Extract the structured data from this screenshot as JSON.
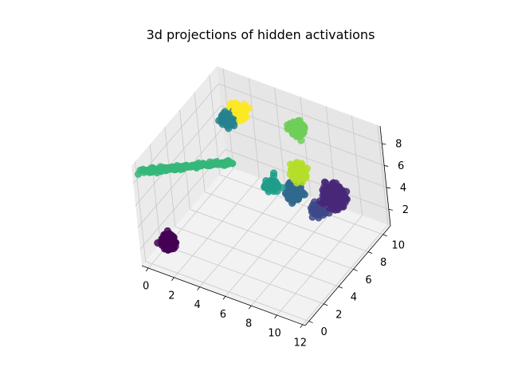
{
  "chart_data": {
    "type": "scatter",
    "projection": "3d",
    "title": "3d projections of hidden activations",
    "xlabel": "",
    "ylabel": "",
    "zlabel": "",
    "xlim": [
      -0.5,
      12.2
    ],
    "ylim": [
      -0.5,
      11.0
    ],
    "zlim": [
      0.5,
      9.6
    ],
    "x_ticks": [
      0,
      2,
      4,
      6,
      8,
      10,
      12
    ],
    "y_ticks": [
      0,
      2,
      4,
      6,
      8,
      10
    ],
    "z_ticks": [
      2,
      4,
      6,
      8
    ],
    "grid": true,
    "colormap": "viridis",
    "clusters": [
      {
        "label": 0,
        "color": "#440154",
        "center": [
          1.0,
          0.8,
          2.3
        ],
        "spread": [
          0.9,
          0.9,
          0.9
        ],
        "points": 140
      },
      {
        "label": 1,
        "color": "#482878",
        "center": [
          9.8,
          8.2,
          4.4
        ],
        "spread": [
          1.4,
          1.4,
          1.4
        ],
        "points": 260
      },
      {
        "label": 2,
        "color": "#3e4989",
        "center": [
          8.8,
          7.6,
          3.2
        ],
        "spread": [
          0.9,
          0.9,
          0.9
        ],
        "points": 90
      },
      {
        "label": 3,
        "color": "#31688e",
        "center": [
          6.9,
          7.8,
          3.9
        ],
        "spread": [
          1.1,
          1.1,
          1.1
        ],
        "points": 160
      },
      {
        "label": 4,
        "color": "#26828e",
        "center": [
          2.5,
          7.2,
          9.0
        ],
        "spread": [
          0.8,
          0.8,
          0.8
        ],
        "points": 140
      },
      {
        "label": 5,
        "color": "#1f9e89",
        "center": [
          6.0,
          6.5,
          5.2
        ],
        "spread": [
          0.9,
          0.9,
          0.9
        ],
        "points": 60
      },
      {
        "label": 6,
        "color": "#35b779",
        "from": [
          -0.6,
          0.6,
          8.2
        ],
        "to": [
          4.0,
          5.0,
          7.5
        ],
        "spread": [
          0.3,
          0.3,
          0.3
        ],
        "points": 160
      },
      {
        "label": 7,
        "color": "#6ece58",
        "center": [
          5.5,
          11.0,
          6.5
        ],
        "spread": [
          0.9,
          0.9,
          0.9
        ],
        "points": 170
      },
      {
        "label": 8,
        "color": "#b5de2b",
        "center": [
          7.4,
          7.7,
          6.0
        ],
        "spread": [
          1.0,
          1.0,
          1.0
        ],
        "points": 120
      },
      {
        "label": 9,
        "color": "#fde725",
        "center": [
          2.9,
          8.0,
          9.3
        ],
        "spread": [
          0.9,
          0.9,
          0.9
        ],
        "points": 150
      }
    ]
  }
}
